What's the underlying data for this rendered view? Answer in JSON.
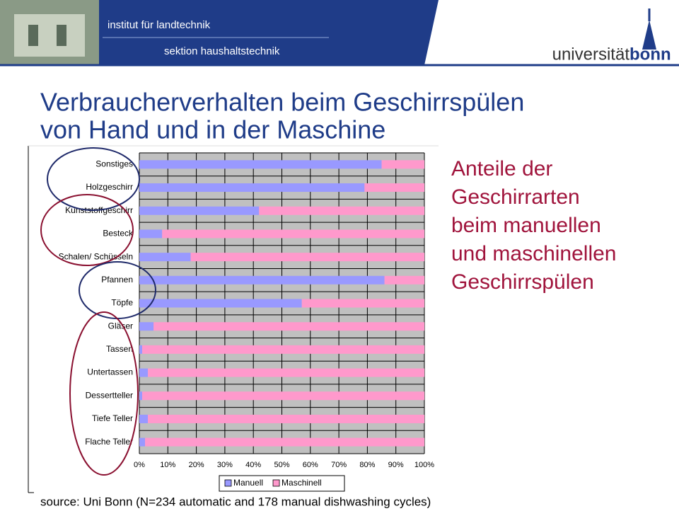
{
  "header": {
    "institute": "institut für landtechnik",
    "section": "sektion haushaltstechnik",
    "university": "universität",
    "university_bold": "bonn"
  },
  "slide": {
    "title": [
      "Verbraucherverhalten beim Geschirrspülen",
      "von Hand und in der Maschine"
    ],
    "side_text": [
      "Anteile der",
      "Geschirrarten",
      "beim manuellen",
      "und maschinellen",
      "Geschirrspülen"
    ],
    "source": "source: Uni Bonn (N=234 automatic and 178 manual dishwashing cycles)"
  },
  "chart_data": {
    "type": "bar",
    "orientation": "horizontal",
    "stacked": true,
    "categories": [
      "Sonstiges",
      "Holzgeschirr",
      "Kunststoffgeschirr",
      "Besteck",
      "Schalen/ Schüsseln",
      "Pfannen",
      "Töpfe",
      "Gläser",
      "Tassen",
      "Untertassen",
      "Dessertteller",
      "Tiefe Teller",
      "Flache Teller"
    ],
    "series": [
      {
        "name": "Manuell",
        "color": "#9999ff",
        "values": [
          85,
          79,
          42,
          8,
          18,
          86,
          57,
          5,
          1,
          3,
          1,
          3,
          2
        ]
      },
      {
        "name": "Maschinell",
        "color": "#ff99cc",
        "values": [
          15,
          21,
          58,
          92,
          82,
          14,
          43,
          95,
          99,
          97,
          99,
          97,
          98
        ]
      }
    ],
    "xlim": [
      0,
      100
    ],
    "xticks": [
      {
        "value": 0,
        "label": "0%"
      },
      {
        "value": 10,
        "label": "10%"
      },
      {
        "value": 20,
        "label": "20%"
      },
      {
        "value": 30,
        "label": "30%"
      },
      {
        "value": 40,
        "label": "40%"
      },
      {
        "value": 50,
        "label": "50%"
      },
      {
        "value": 60,
        "label": "60%"
      },
      {
        "value": 70,
        "label": "70%"
      },
      {
        "value": 80,
        "label": "80%"
      },
      {
        "value": 90,
        "label": "90%"
      },
      {
        "value": 100,
        "label": "100%"
      }
    ],
    "grid": true,
    "legend": "bottom"
  }
}
